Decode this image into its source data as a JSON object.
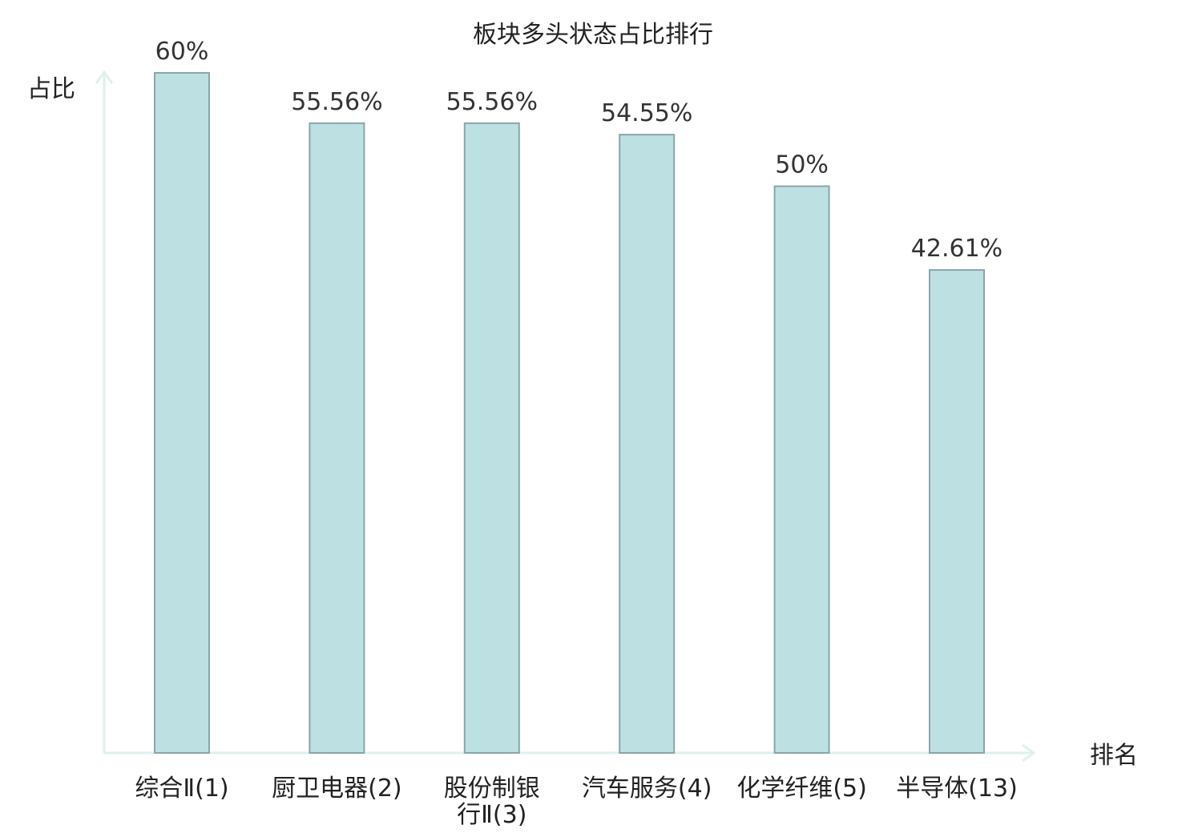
{
  "chart_data": {
    "type": "bar",
    "title": "板块多头状态占比排行",
    "ylabel": "占比",
    "xlabel": "排名",
    "ylim": [
      0,
      60
    ],
    "categories": [
      [
        "综合Ⅱ(1)"
      ],
      [
        "厨卫电器(2)"
      ],
      [
        "股份制银",
        "行Ⅱ(3)"
      ],
      [
        "汽车服务(4)"
      ],
      [
        "化学纤维(5)"
      ],
      [
        "半导体(13)"
      ]
    ],
    "values": [
      60,
      55.56,
      55.56,
      54.55,
      50,
      42.61
    ],
    "value_labels": [
      "60%",
      "55.56%",
      "55.56%",
      "54.55%",
      "50%",
      "42.61%"
    ],
    "highlight_index": 5,
    "grid": false
  },
  "colors": {
    "bar_fill": "#bde0e3",
    "bar_stroke": "#8aa6a9",
    "axis": "#dff1ee",
    "text": "#222222",
    "highlight_text": "#e8190f"
  }
}
